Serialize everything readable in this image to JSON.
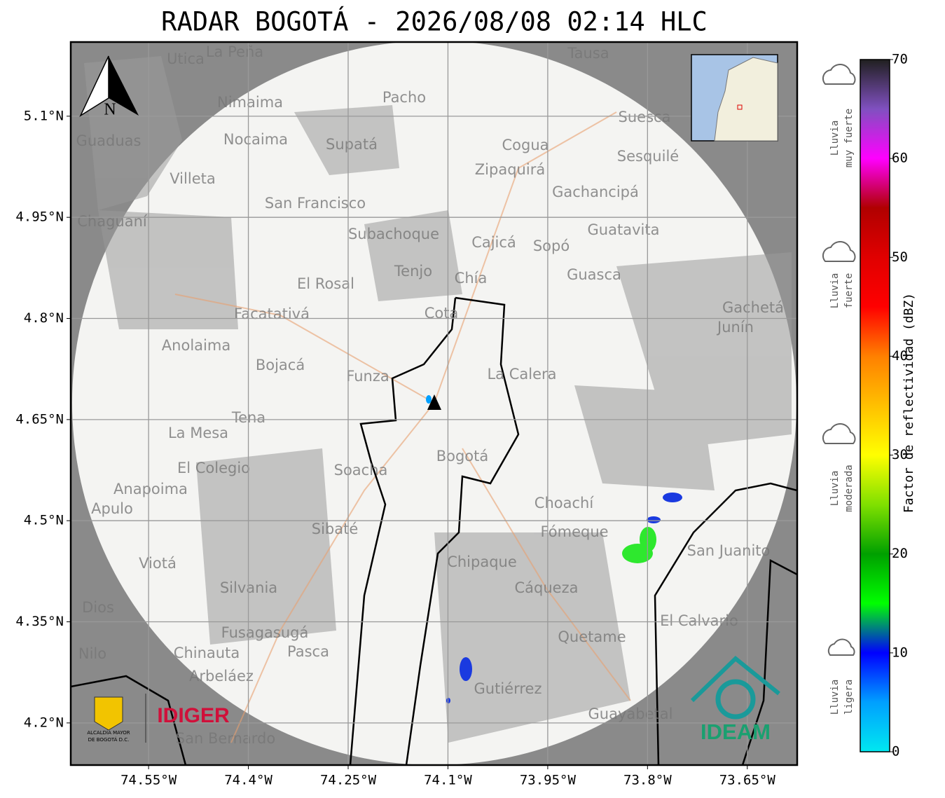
{
  "title": "RADAR BOGOTÁ - 2026/08/08 02:14 HLC",
  "map": {
    "xlim": [
      -74.667,
      -73.575
    ],
    "ylim": [
      4.1375,
      5.21
    ],
    "xticks": [
      {
        "value": -74.55,
        "label": "74.55°W"
      },
      {
        "value": -74.4,
        "label": "74.4°W"
      },
      {
        "value": -74.25,
        "label": "74.25°W"
      },
      {
        "value": -74.1,
        "label": "74.1°W"
      },
      {
        "value": -73.95,
        "label": "73.95°W"
      },
      {
        "value": -73.8,
        "label": "73.8°W"
      },
      {
        "value": -73.65,
        "label": "73.65°W"
      }
    ],
    "yticks": [
      {
        "value": 4.2,
        "label": "4.2°N"
      },
      {
        "value": 4.35,
        "label": "4.35°N"
      },
      {
        "value": 4.5,
        "label": "4.5°N"
      },
      {
        "value": 4.65,
        "label": "4.65°N"
      },
      {
        "value": 4.8,
        "label": "4.8°N"
      },
      {
        "value": 4.95,
        "label": "4.95°N"
      },
      {
        "value": 5.1,
        "label": "5.1°N"
      }
    ],
    "grid": true,
    "compass": "N",
    "places": [
      "La Peña",
      "Utica",
      "Tausa",
      "Pacho",
      "Nimaima",
      "Guaduas",
      "Nocaima",
      "Supatá",
      "Suesca",
      "Cogua",
      "Sesquilé",
      "Zipaquirá",
      "Villeta",
      "Gachancipá",
      "San Francisco",
      "Chaguaní",
      "Guatavita",
      "Subachoque",
      "Cajicá",
      "Sopó",
      "Tenjo",
      "Guasca",
      "El Rosal",
      "Chía",
      "Facatativá",
      "Gachetá",
      "Junín",
      "Cota",
      "Anolaima",
      "Bojacá",
      "Funza",
      "La Calera",
      "Tena",
      "La Mesa",
      "Bogotá",
      "Soacha",
      "El Colegio",
      "Anapoima",
      "Apulo",
      "Choachí",
      "Sibaté",
      "Fómeque",
      "San Juanito",
      "Viotá",
      "Chipaque",
      "Silvania",
      "Cáqueza",
      "El Calvario",
      "Fusagasugá",
      "Quetame",
      "Chinauta",
      "Pasca",
      "Nilo",
      "Arbeláez",
      "Gutiérrez",
      "Guayabetal",
      "San Bernardo",
      "Dios"
    ]
  },
  "colorbar": {
    "label": "Factor de reflectividad (dBZ)",
    "lim": [
      0,
      70
    ],
    "ticks": [
      0,
      10,
      20,
      30,
      40,
      50,
      60,
      70
    ],
    "colors": [
      "#00e8f0",
      "#00a0ff",
      "#0000ff",
      "#00ff00",
      "#00a000",
      "#80e000",
      "#ffff00",
      "#ffc000",
      "#ff8000",
      "#ff0000",
      "#e00000",
      "#b00000",
      "#ff00ff",
      "#8050c0",
      "#202020"
    ],
    "categories": [
      [
        "Lluvia",
        "muy fuerte"
      ],
      [
        "Lluvia",
        "fuerte"
      ],
      [
        "Lluvia",
        "moderada"
      ],
      [
        "Lluvia",
        "ligera"
      ]
    ]
  },
  "logos": {
    "alcaldia": [
      "ALCALDÍA MAYOR",
      "DE BOGOTÁ D.C."
    ],
    "idiger": "IDIGER",
    "ideam": "IDEAM"
  }
}
